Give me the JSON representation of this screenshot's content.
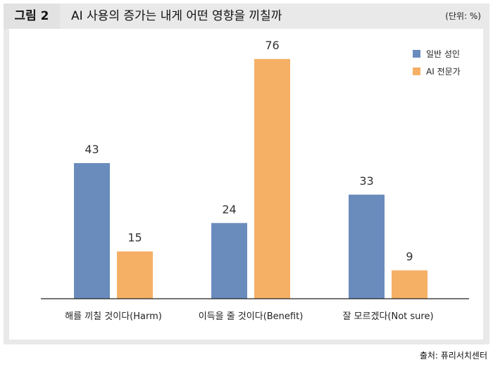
{
  "header": {
    "figure_label": "그림 2",
    "title": "AI 사용의 증가는 내게 어떤 영향을 끼칠까",
    "unit": "(단위: %)"
  },
  "source": "출처: 퓨리서치센터",
  "colors": {
    "general": "#6a8cbd",
    "expert": "#f5b066"
  },
  "chart_data": {
    "type": "bar",
    "categories": [
      "해를 끼칠 것이다(Harm)",
      "이득을 줄 것이다(Benefit)",
      "잘 모르겠다(Not sure)"
    ],
    "series": [
      {
        "name": "일반 성인",
        "values": [
          43,
          24,
          33
        ]
      },
      {
        "name": "AI 전문가",
        "values": [
          15,
          76,
          9
        ]
      }
    ],
    "ylim": [
      0,
      80
    ],
    "grid": false,
    "legend": "top-right"
  }
}
